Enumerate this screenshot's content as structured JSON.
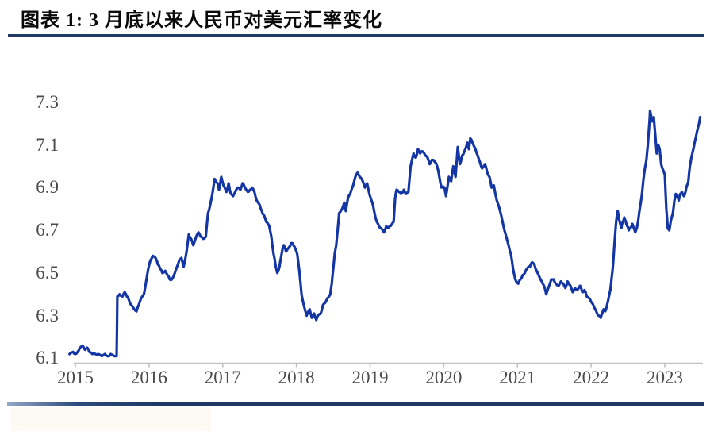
{
  "chart_data": {
    "type": "line",
    "title": "图表 1: 3 月底以来人民币对美元汇率变化",
    "x_tick_labels": [
      "2015",
      "2016",
      "2017",
      "2018",
      "2019",
      "2020",
      "2021",
      "2022",
      "2023"
    ],
    "x_tick_values": [
      2015,
      2016,
      2017,
      2018,
      2019,
      2020,
      2021,
      2022,
      2023
    ],
    "y_tick_labels": [
      "7.3",
      "7.1",
      "6.9",
      "6.7",
      "6.5",
      "6.3",
      "6.1"
    ],
    "y_tick_values": [
      7.3,
      7.1,
      6.9,
      6.7,
      6.5,
      6.3,
      6.1
    ],
    "ylim": [
      6.1,
      7.3
    ],
    "xlim": [
      2014.92,
      2023.55
    ],
    "grid": false,
    "legend": "none",
    "line_color": "#1436A5",
    "axis_color": "#BFBFBF",
    "tick_label_color": "#4a4a4a",
    "accent_rule_color": "#1F3864",
    "series": [
      {
        "points": [
          [
            2014.92,
            6.12
          ],
          [
            2014.97,
            6.13
          ],
          [
            2015.0,
            6.12
          ],
          [
            2015.03,
            6.13
          ],
          [
            2015.06,
            6.15
          ],
          [
            2015.1,
            6.16
          ],
          [
            2015.13,
            6.14
          ],
          [
            2015.16,
            6.15
          ],
          [
            2015.19,
            6.13
          ],
          [
            2015.23,
            6.12
          ],
          [
            2015.27,
            6.12
          ],
          [
            2015.31,
            6.12
          ],
          [
            2015.36,
            6.11
          ],
          [
            2015.4,
            6.12
          ],
          [
            2015.44,
            6.11
          ],
          [
            2015.48,
            6.12
          ],
          [
            2015.53,
            6.11
          ],
          [
            2015.56,
            6.11
          ],
          [
            2015.57,
            6.39
          ],
          [
            2015.6,
            6.4
          ],
          [
            2015.64,
            6.39
          ],
          [
            2015.67,
            6.41
          ],
          [
            2015.7,
            6.39
          ],
          [
            2015.73,
            6.37
          ],
          [
            2015.76,
            6.35
          ],
          [
            2015.8,
            6.33
          ],
          [
            2015.83,
            6.32
          ],
          [
            2015.86,
            6.35
          ],
          [
            2015.89,
            6.38
          ],
          [
            2015.93,
            6.4
          ],
          [
            2015.96,
            6.46
          ],
          [
            2015.99,
            6.52
          ],
          [
            2016.02,
            6.56
          ],
          [
            2016.05,
            6.58
          ],
          [
            2016.09,
            6.57
          ],
          [
            2016.12,
            6.54
          ],
          [
            2016.15,
            6.52
          ],
          [
            2016.18,
            6.5
          ],
          [
            2016.22,
            6.51
          ],
          [
            2016.25,
            6.49
          ],
          [
            2016.28,
            6.47
          ],
          [
            2016.31,
            6.47
          ],
          [
            2016.35,
            6.5
          ],
          [
            2016.38,
            6.53
          ],
          [
            2016.41,
            6.56
          ],
          [
            2016.44,
            6.57
          ],
          [
            2016.47,
            6.53
          ],
          [
            2016.51,
            6.6
          ],
          [
            2016.54,
            6.68
          ],
          [
            2016.57,
            6.66
          ],
          [
            2016.6,
            6.63
          ],
          [
            2016.64,
            6.67
          ],
          [
            2016.67,
            6.69
          ],
          [
            2016.7,
            6.67
          ],
          [
            2016.73,
            6.66
          ],
          [
            2016.77,
            6.67
          ],
          [
            2016.8,
            6.78
          ],
          [
            2016.83,
            6.82
          ],
          [
            2016.86,
            6.87
          ],
          [
            2016.89,
            6.94
          ],
          [
            2016.93,
            6.92
          ],
          [
            2016.95,
            6.89
          ],
          [
            2016.98,
            6.95
          ],
          [
            2017.01,
            6.91
          ],
          [
            2017.05,
            6.88
          ],
          [
            2017.08,
            6.92
          ],
          [
            2017.11,
            6.87
          ],
          [
            2017.14,
            6.86
          ],
          [
            2017.17,
            6.88
          ],
          [
            2017.21,
            6.9
          ],
          [
            2017.24,
            6.89
          ],
          [
            2017.27,
            6.92
          ],
          [
            2017.3,
            6.9
          ],
          [
            2017.34,
            6.88
          ],
          [
            2017.37,
            6.89
          ],
          [
            2017.4,
            6.9
          ],
          [
            2017.43,
            6.88
          ],
          [
            2017.46,
            6.84
          ],
          [
            2017.5,
            6.82
          ],
          [
            2017.53,
            6.79
          ],
          [
            2017.56,
            6.77
          ],
          [
            2017.59,
            6.74
          ],
          [
            2017.63,
            6.72
          ],
          [
            2017.66,
            6.67
          ],
          [
            2017.69,
            6.59
          ],
          [
            2017.72,
            6.53
          ],
          [
            2017.74,
            6.5
          ],
          [
            2017.77,
            6.53
          ],
          [
            2017.79,
            6.57
          ],
          [
            2017.81,
            6.61
          ],
          [
            2017.83,
            6.63
          ],
          [
            2017.86,
            6.6
          ],
          [
            2017.9,
            6.62
          ],
          [
            2017.93,
            6.64
          ],
          [
            2017.96,
            6.63
          ],
          [
            2017.99,
            6.61
          ],
          [
            2018.01,
            6.59
          ],
          [
            2018.04,
            6.51
          ],
          [
            2018.07,
            6.4
          ],
          [
            2018.1,
            6.35
          ],
          [
            2018.14,
            6.3
          ],
          [
            2018.18,
            6.33
          ],
          [
            2018.21,
            6.29
          ],
          [
            2018.24,
            6.31
          ],
          [
            2018.27,
            6.28
          ],
          [
            2018.29,
            6.3
          ],
          [
            2018.33,
            6.31
          ],
          [
            2018.36,
            6.35
          ],
          [
            2018.39,
            6.36
          ],
          [
            2018.42,
            6.38
          ],
          [
            2018.46,
            6.4
          ],
          [
            2018.48,
            6.45
          ],
          [
            2018.5,
            6.52
          ],
          [
            2018.52,
            6.59
          ],
          [
            2018.54,
            6.63
          ],
          [
            2018.56,
            6.7
          ],
          [
            2018.58,
            6.78
          ],
          [
            2018.62,
            6.8
          ],
          [
            2018.65,
            6.83
          ],
          [
            2018.67,
            6.79
          ],
          [
            2018.7,
            6.85
          ],
          [
            2018.73,
            6.87
          ],
          [
            2018.77,
            6.91
          ],
          [
            2018.8,
            6.95
          ],
          [
            2018.83,
            6.97
          ],
          [
            2018.86,
            6.95
          ],
          [
            2018.9,
            6.93
          ],
          [
            2018.93,
            6.9
          ],
          [
            2018.96,
            6.92
          ],
          [
            2018.99,
            6.87
          ],
          [
            2019.03,
            6.83
          ],
          [
            2019.06,
            6.78
          ],
          [
            2019.09,
            6.74
          ],
          [
            2019.12,
            6.72
          ],
          [
            2019.15,
            6.71
          ],
          [
            2019.19,
            6.69
          ],
          [
            2019.22,
            6.72
          ],
          [
            2019.25,
            6.71
          ],
          [
            2019.28,
            6.72
          ],
          [
            2019.32,
            6.74
          ],
          [
            2019.34,
            6.85
          ],
          [
            2019.36,
            6.89
          ],
          [
            2019.39,
            6.88
          ],
          [
            2019.42,
            6.87
          ],
          [
            2019.46,
            6.89
          ],
          [
            2019.49,
            6.87
          ],
          [
            2019.52,
            6.88
          ],
          [
            2019.55,
            7.0
          ],
          [
            2019.59,
            7.06
          ],
          [
            2019.62,
            7.04
          ],
          [
            2019.65,
            7.08
          ],
          [
            2019.68,
            7.06
          ],
          [
            2019.71,
            7.07
          ],
          [
            2019.75,
            7.05
          ],
          [
            2019.78,
            7.04
          ],
          [
            2019.81,
            7.01
          ],
          [
            2019.84,
            7.03
          ],
          [
            2019.88,
            7.02
          ],
          [
            2019.91,
            7.0
          ],
          [
            2019.94,
            6.95
          ],
          [
            2019.97,
            6.9
          ],
          [
            2020.01,
            6.9
          ],
          [
            2020.03,
            6.86
          ],
          [
            2020.07,
            6.95
          ],
          [
            2020.1,
            6.93
          ],
          [
            2020.13,
            7.0
          ],
          [
            2020.16,
            6.95
          ],
          [
            2020.19,
            7.09
          ],
          [
            2020.22,
            7.01
          ],
          [
            2020.25,
            7.05
          ],
          [
            2020.28,
            7.07
          ],
          [
            2020.32,
            7.11
          ],
          [
            2020.34,
            7.08
          ],
          [
            2020.36,
            7.13
          ],
          [
            2020.39,
            7.11
          ],
          [
            2020.43,
            7.08
          ],
          [
            2020.46,
            7.05
          ],
          [
            2020.49,
            7.02
          ],
          [
            2020.52,
            6.99
          ],
          [
            2020.56,
            7.01
          ],
          [
            2020.59,
            6.97
          ],
          [
            2020.62,
            6.95
          ],
          [
            2020.65,
            6.9
          ],
          [
            2020.68,
            6.91
          ],
          [
            2020.72,
            6.84
          ],
          [
            2020.75,
            6.81
          ],
          [
            2020.78,
            6.77
          ],
          [
            2020.81,
            6.72
          ],
          [
            2020.84,
            6.68
          ],
          [
            2020.88,
            6.63
          ],
          [
            2020.91,
            6.59
          ],
          [
            2020.94,
            6.52
          ],
          [
            2020.97,
            6.47
          ],
          [
            2021.01,
            6.45
          ],
          [
            2021.04,
            6.47
          ],
          [
            2021.07,
            6.49
          ],
          [
            2021.1,
            6.5
          ],
          [
            2021.13,
            6.52
          ],
          [
            2021.17,
            6.53
          ],
          [
            2021.2,
            6.55
          ],
          [
            2021.23,
            6.54
          ],
          [
            2021.26,
            6.51
          ],
          [
            2021.3,
            6.48
          ],
          [
            2021.33,
            6.46
          ],
          [
            2021.36,
            6.44
          ],
          [
            2021.39,
            6.4
          ],
          [
            2021.43,
            6.44
          ],
          [
            2021.46,
            6.47
          ],
          [
            2021.49,
            6.47
          ],
          [
            2021.52,
            6.45
          ],
          [
            2021.56,
            6.44
          ],
          [
            2021.59,
            6.46
          ],
          [
            2021.62,
            6.45
          ],
          [
            2021.65,
            6.43
          ],
          [
            2021.68,
            6.46
          ],
          [
            2021.72,
            6.44
          ],
          [
            2021.75,
            6.41
          ],
          [
            2021.78,
            6.43
          ],
          [
            2021.81,
            6.42
          ],
          [
            2021.85,
            6.44
          ],
          [
            2021.88,
            6.41
          ],
          [
            2021.91,
            6.42
          ],
          [
            2021.94,
            6.39
          ],
          [
            2021.98,
            6.38
          ],
          [
            2022.01,
            6.36
          ],
          [
            2022.04,
            6.34
          ],
          [
            2022.07,
            6.32
          ],
          [
            2022.1,
            6.3
          ],
          [
            2022.13,
            6.29
          ],
          [
            2022.15,
            6.31
          ],
          [
            2022.17,
            6.33
          ],
          [
            2022.19,
            6.32
          ],
          [
            2022.21,
            6.34
          ],
          [
            2022.23,
            6.37
          ],
          [
            2022.26,
            6.42
          ],
          [
            2022.28,
            6.48
          ],
          [
            2022.3,
            6.55
          ],
          [
            2022.32,
            6.65
          ],
          [
            2022.34,
            6.74
          ],
          [
            2022.36,
            6.79
          ],
          [
            2022.38,
            6.75
          ],
          [
            2022.41,
            6.71
          ],
          [
            2022.43,
            6.74
          ],
          [
            2022.45,
            6.76
          ],
          [
            2022.47,
            6.74
          ],
          [
            2022.49,
            6.72
          ],
          [
            2022.51,
            6.7
          ],
          [
            2022.53,
            6.71
          ],
          [
            2022.56,
            6.73
          ],
          [
            2022.58,
            6.71
          ],
          [
            2022.6,
            6.69
          ],
          [
            2022.62,
            6.71
          ],
          [
            2022.64,
            6.75
          ],
          [
            2022.66,
            6.8
          ],
          [
            2022.69,
            6.87
          ],
          [
            2022.71,
            6.94
          ],
          [
            2022.73,
            6.99
          ],
          [
            2022.75,
            7.03
          ],
          [
            2022.77,
            7.1
          ],
          [
            2022.79,
            7.2
          ],
          [
            2022.8,
            7.26
          ],
          [
            2022.83,
            7.21
          ],
          [
            2022.85,
            7.23
          ],
          [
            2022.87,
            7.15
          ],
          [
            2022.89,
            7.06
          ],
          [
            2022.91,
            7.1
          ],
          [
            2022.93,
            7.08
          ],
          [
            2022.95,
            7.01
          ],
          [
            2022.98,
            6.98
          ],
          [
            2023.0,
            6.96
          ],
          [
            2023.02,
            6.8
          ],
          [
            2023.04,
            6.71
          ],
          [
            2023.06,
            6.7
          ],
          [
            2023.08,
            6.74
          ],
          [
            2023.11,
            6.78
          ],
          [
            2023.13,
            6.84
          ],
          [
            2023.15,
            6.87
          ],
          [
            2023.17,
            6.86
          ],
          [
            2023.19,
            6.84
          ],
          [
            2023.21,
            6.87
          ],
          [
            2023.23,
            6.88
          ],
          [
            2023.26,
            6.86
          ],
          [
            2023.28,
            6.88
          ],
          [
            2023.3,
            6.91
          ],
          [
            2023.32,
            6.93
          ],
          [
            2023.34,
            7.0
          ],
          [
            2023.36,
            7.04
          ],
          [
            2023.38,
            7.07
          ],
          [
            2023.41,
            7.12
          ],
          [
            2023.43,
            7.15
          ],
          [
            2023.45,
            7.18
          ],
          [
            2023.48,
            7.23
          ]
        ]
      }
    ]
  }
}
